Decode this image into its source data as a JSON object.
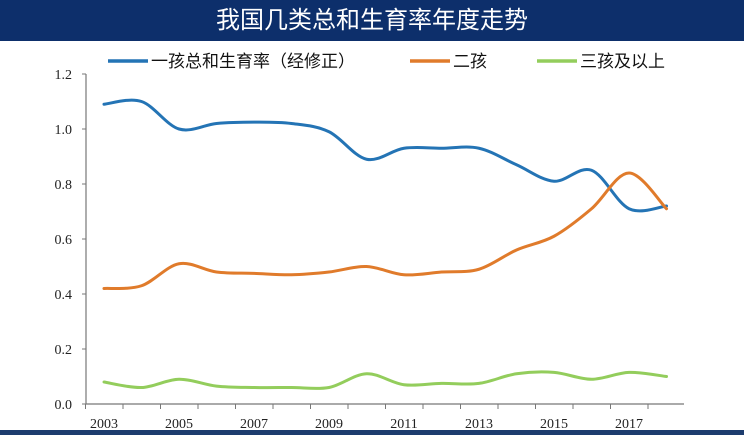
{
  "header": {
    "title": "我国几类总和生育率年度走势"
  },
  "chart_data": {
    "type": "line",
    "title": "我国几类总和生育率年度走势",
    "xlabel": "",
    "ylabel": "",
    "x": [
      2003,
      2004,
      2005,
      2006,
      2007,
      2008,
      2009,
      2010,
      2011,
      2012,
      2013,
      2014,
      2015,
      2016,
      2017,
      2018
    ],
    "xticks": [
      "2003",
      "2005",
      "2007",
      "2009",
      "2011",
      "2013",
      "2015",
      "2017"
    ],
    "yticks": [
      "0.0",
      "0.2",
      "0.4",
      "0.6",
      "0.8",
      "1.0",
      "1.2"
    ],
    "ylim": [
      0,
      1.2
    ],
    "grid": false,
    "legend_position": "top",
    "series": [
      {
        "name": "一孩总和生育率（经修正）",
        "color": "#2474b5",
        "values": [
          1.09,
          1.1,
          1.0,
          1.02,
          1.025,
          1.02,
          0.99,
          0.89,
          0.93,
          0.93,
          0.93,
          0.87,
          0.81,
          0.85,
          0.71,
          0.72
        ]
      },
      {
        "name": "二孩",
        "color": "#e07b2b",
        "values": [
          0.42,
          0.43,
          0.51,
          0.48,
          0.475,
          0.47,
          0.48,
          0.5,
          0.47,
          0.48,
          0.49,
          0.56,
          0.61,
          0.71,
          0.84,
          0.71
        ]
      },
      {
        "name": "三孩及以上",
        "color": "#93cd5c",
        "values": [
          0.08,
          0.06,
          0.09,
          0.065,
          0.06,
          0.06,
          0.06,
          0.11,
          0.07,
          0.075,
          0.075,
          0.11,
          0.115,
          0.09,
          0.115,
          0.1
        ]
      }
    ]
  }
}
